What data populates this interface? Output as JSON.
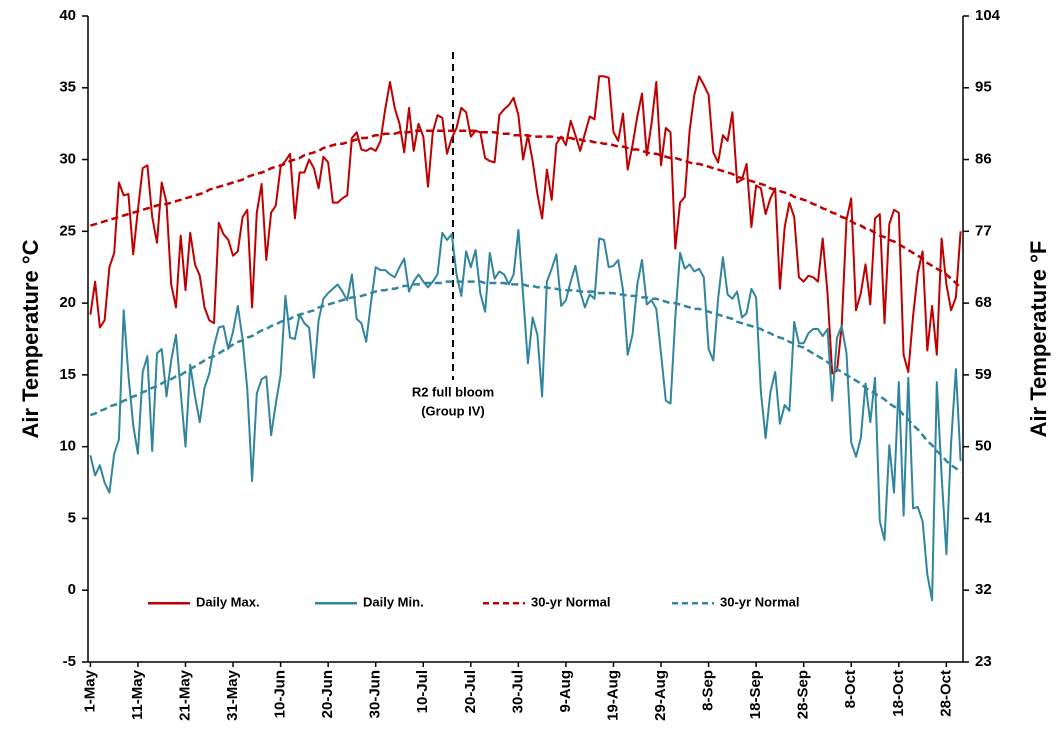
{
  "chart_data": {
    "type": "line",
    "ylabel": "Air Temperature °C",
    "y2label": "Air Temperature °F",
    "annotation": [
      "R2 full bloom",
      "(Group IV)"
    ],
    "categories": [
      "1-May",
      null,
      null,
      null,
      null,
      null,
      null,
      null,
      null,
      null,
      "11-May",
      null,
      null,
      null,
      null,
      null,
      null,
      null,
      null,
      null,
      "21-May",
      null,
      null,
      null,
      null,
      null,
      null,
      null,
      null,
      null,
      "31-May",
      null,
      null,
      null,
      null,
      null,
      null,
      null,
      null,
      null,
      "10-Jun",
      null,
      null,
      null,
      null,
      null,
      null,
      null,
      null,
      null,
      "20-Jun",
      null,
      null,
      null,
      null,
      null,
      null,
      null,
      null,
      null,
      "30-Jun",
      null,
      null,
      null,
      null,
      null,
      null,
      null,
      null,
      null,
      "10-Jul",
      null,
      null,
      null,
      null,
      null,
      null,
      null,
      null,
      null,
      "20-Jul",
      null,
      null,
      null,
      null,
      null,
      null,
      null,
      null,
      null,
      "30-Jul",
      null,
      null,
      null,
      null,
      null,
      null,
      null,
      null,
      null,
      "9-Aug",
      null,
      null,
      null,
      null,
      null,
      null,
      null,
      null,
      null,
      "19-Aug",
      null,
      null,
      null,
      null,
      null,
      null,
      null,
      null,
      null,
      "29-Aug",
      null,
      null,
      null,
      null,
      null,
      null,
      null,
      null,
      null,
      "8-Sep",
      null,
      null,
      null,
      null,
      null,
      null,
      null,
      null,
      null,
      "18-Sep",
      null,
      null,
      null,
      null,
      null,
      null,
      null,
      null,
      null,
      "28-Sep",
      null,
      null,
      null,
      null,
      null,
      null,
      null,
      null,
      null,
      "8-Oct",
      null,
      null,
      null,
      null,
      null,
      null,
      null,
      null,
      null,
      "18-Oct",
      null,
      null,
      null,
      null,
      null,
      null,
      null,
      null,
      null,
      "28-Oct",
      null,
      null,
      null
    ],
    "ylim": [
      -5,
      40
    ],
    "yticks": [
      -5,
      0,
      5,
      10,
      15,
      20,
      25,
      30,
      35,
      40
    ],
    "y2lim": [
      23,
      104
    ],
    "y2ticks": [
      23,
      32,
      41,
      50,
      59,
      68,
      77,
      86,
      95,
      104
    ],
    "legend": "lower center",
    "series": [
      {
        "name": "Daily Max.",
        "color": "#c00000",
        "dashed": false,
        "values": [
          19.2,
          21.5,
          18.3,
          18.8,
          22.5,
          23.5,
          28.4,
          27.5,
          27.6,
          23.4,
          26.5,
          29.4,
          29.6,
          26.0,
          24.2,
          28.4,
          27.0,
          21.3,
          19.7,
          24.7,
          20.9,
          24.9,
          22.7,
          21.9,
          19.7,
          18.8,
          18.6,
          25.6,
          24.8,
          24.4,
          23.3,
          23.6,
          26.0,
          26.5,
          19.7,
          26.3,
          28.3,
          23.0,
          26.3,
          26.8,
          29.5,
          29.9,
          30.4,
          25.9,
          29.1,
          29.1,
          30.0,
          29.4,
          28.0,
          30.2,
          29.8,
          27.0,
          27.0,
          27.3,
          27.5,
          31.5,
          31.9,
          30.7,
          30.6,
          30.8,
          30.6,
          31.3,
          33.5,
          35.4,
          33.6,
          32.5,
          30.5,
          33.6,
          30.6,
          32.5,
          31.6,
          28.1,
          31.9,
          33.1,
          32.9,
          30.4,
          31.5,
          32.2,
          33.6,
          33.3,
          31.6,
          32.0,
          31.9,
          30.1,
          29.9,
          29.8,
          33.1,
          33.5,
          33.8,
          34.3,
          33.1,
          30.0,
          31.7,
          29.9,
          27.6,
          25.9,
          29.3,
          27.2,
          31.1,
          31.6,
          31.0,
          32.7,
          31.7,
          30.6,
          31.8,
          33.0,
          32.8,
          35.8,
          35.8,
          35.7,
          31.9,
          31.3,
          33.2,
          29.3,
          31.0,
          33.0,
          34.6,
          30.3,
          32.5,
          35.4,
          29.6,
          32.2,
          31.9,
          23.8,
          27.0,
          27.4,
          32.0,
          34.5,
          35.8,
          35.2,
          34.5,
          30.5,
          29.8,
          31.7,
          31.3,
          33.3,
          28.4,
          28.6,
          29.7,
          25.3,
          28.2,
          28.0,
          26.2,
          27.3,
          28.0,
          21.0,
          25.3,
          27.0,
          26.0,
          21.8,
          21.5,
          21.9,
          21.8,
          21.5,
          24.5,
          20.7,
          15.1,
          15.3,
          18.4,
          25.8,
          27.3,
          19.5,
          20.7,
          22.7,
          19.9,
          25.9,
          26.2,
          18.6,
          25.5,
          26.5,
          26.3,
          16.4,
          15.2,
          19.1,
          22.1,
          23.6,
          16.7,
          19.8,
          16.4,
          24.5,
          21.3,
          19.5,
          20.4,
          25.0
        ]
      },
      {
        "name": "Daily Min.",
        "color": "#31859c",
        "dashed": false,
        "values": [
          9.4,
          8.0,
          8.7,
          7.5,
          6.8,
          9.5,
          10.5,
          19.5,
          15.0,
          11.5,
          9.5,
          15.2,
          16.3,
          9.7,
          16.5,
          16.8,
          13.5,
          16.0,
          17.8,
          13.8,
          10.0,
          15.7,
          13.5,
          11.7,
          14.1,
          15.1,
          17.0,
          18.3,
          18.4,
          16.8,
          18.0,
          19.8,
          17.5,
          14.0,
          7.6,
          13.7,
          14.7,
          14.9,
          10.8,
          13.0,
          15.0,
          20.5,
          17.6,
          17.5,
          19.2,
          18.6,
          18.3,
          14.8,
          18.8,
          20.3,
          20.7,
          21.0,
          21.3,
          20.8,
          20.2,
          22.0,
          18.9,
          18.6,
          17.3,
          20.0,
          22.5,
          22.3,
          22.3,
          22.0,
          21.8,
          22.5,
          23.1,
          20.8,
          21.5,
          22.0,
          21.5,
          21.1,
          21.5,
          22.0,
          24.9,
          24.4,
          24.8,
          22.0,
          20.5,
          23.6,
          22.5,
          23.7,
          20.7,
          19.4,
          23.5,
          21.7,
          22.2,
          22.0,
          21.3,
          22.0,
          25.1,
          20.6,
          15.8,
          19.0,
          17.8,
          13.5,
          21.5,
          22.4,
          23.4,
          19.8,
          20.2,
          21.5,
          22.6,
          20.8,
          19.7,
          20.6,
          20.3,
          24.5,
          24.4,
          22.5,
          22.6,
          23.0,
          20.9,
          16.4,
          17.8,
          21.3,
          23.0,
          19.9,
          20.2,
          19.6,
          16.5,
          13.2,
          13.0,
          19.0,
          23.5,
          22.4,
          22.7,
          22.2,
          22.4,
          21.8,
          16.8,
          16.0,
          20.3,
          23.2,
          20.6,
          20.3,
          20.8,
          19.0,
          19.3,
          21.0,
          20.4,
          13.8,
          10.6,
          13.8,
          15.2,
          11.6,
          12.9,
          12.5,
          18.7,
          17.2,
          17.2,
          17.9,
          18.2,
          18.2,
          17.7,
          18.2,
          13.2,
          17.6,
          18.4,
          16.5,
          10.3,
          9.3,
          10.6,
          14.4,
          11.7,
          14.8,
          4.8,
          3.5,
          10.1,
          6.8,
          14.5,
          5.2,
          14.8,
          5.7,
          5.8,
          4.8,
          1.1,
          -0.7,
          14.5,
          8.0,
          2.5,
          10.3,
          15.4,
          9.0
        ]
      },
      {
        "name": "30-yr Normal",
        "color": "#c00000",
        "dashed": true,
        "values": [
          25.4,
          25.5,
          25.6,
          25.7,
          25.8,
          25.9,
          26.0,
          26.1,
          26.2,
          26.3,
          26.4,
          26.5,
          26.6,
          26.7,
          26.8,
          26.9,
          26.9,
          27.0,
          27.1,
          27.2,
          27.3,
          27.4,
          27.5,
          27.6,
          27.7,
          27.9,
          28.0,
          28.1,
          28.2,
          28.3,
          28.4,
          28.5,
          28.6,
          28.8,
          28.9,
          29.0,
          29.1,
          29.2,
          29.4,
          29.5,
          29.6,
          29.7,
          29.9,
          30.0,
          30.1,
          30.3,
          30.4,
          30.5,
          30.6,
          30.8,
          30.9,
          31.0,
          31.1,
          31.1,
          31.2,
          31.3,
          31.4,
          31.5,
          31.5,
          31.6,
          31.7,
          31.7,
          31.8,
          31.8,
          31.8,
          31.9,
          31.9,
          31.9,
          32.0,
          32.0,
          32.0,
          32.0,
          32.0,
          32.0,
          32.0,
          32.0,
          32.0,
          32.0,
          32.0,
          32.0,
          32.0,
          32.0,
          31.9,
          31.9,
          31.9,
          31.9,
          31.8,
          31.8,
          31.8,
          31.7,
          31.7,
          31.7,
          31.7,
          31.6,
          31.6,
          31.6,
          31.6,
          31.6,
          31.5,
          31.5,
          31.5,
          31.5,
          31.4,
          31.4,
          31.3,
          31.3,
          31.2,
          31.2,
          31.1,
          31.1,
          31.0,
          30.9,
          30.9,
          30.8,
          30.7,
          30.7,
          30.6,
          30.5,
          30.4,
          30.4,
          30.3,
          30.2,
          30.1,
          30.1,
          30.0,
          29.9,
          29.8,
          29.7,
          29.7,
          29.6,
          29.5,
          29.4,
          29.3,
          29.2,
          29.1,
          29.0,
          28.8,
          28.7,
          28.6,
          28.5,
          28.4,
          28.3,
          28.2,
          28.0,
          27.9,
          27.8,
          27.7,
          27.6,
          27.4,
          27.3,
          27.2,
          27.1,
          26.9,
          26.8,
          26.6,
          26.5,
          26.3,
          26.2,
          26.0,
          25.9,
          25.7,
          25.5,
          25.4,
          25.2,
          25.1,
          24.9,
          24.7,
          24.6,
          24.4,
          24.3,
          24.1,
          23.9,
          23.7,
          23.5,
          23.3,
          23.1,
          22.8,
          22.6,
          22.4,
          22.2,
          22.0,
          21.7,
          21.4,
          21.1
        ]
      },
      {
        "name": "30-yr Normal",
        "color": "#31859c",
        "dashed": true,
        "values": [
          12.2,
          12.3,
          12.5,
          12.6,
          12.8,
          12.9,
          13.0,
          13.2,
          13.3,
          13.5,
          13.6,
          13.8,
          13.9,
          14.1,
          14.2,
          14.4,
          14.6,
          14.7,
          14.9,
          15.0,
          15.2,
          15.4,
          15.6,
          15.8,
          16.0,
          16.2,
          16.3,
          16.5,
          16.7,
          16.9,
          17.1,
          17.3,
          17.4,
          17.6,
          17.7,
          17.9,
          18.1,
          18.2,
          18.4,
          18.5,
          18.7,
          18.8,
          18.9,
          19.1,
          19.2,
          19.3,
          19.4,
          19.5,
          19.7,
          19.8,
          19.9,
          20.0,
          20.1,
          20.2,
          20.3,
          20.4,
          20.4,
          20.5,
          20.6,
          20.7,
          20.8,
          20.9,
          20.9,
          21.0,
          21.0,
          21.1,
          21.2,
          21.2,
          21.3,
          21.3,
          21.4,
          21.4,
          21.4,
          21.4,
          21.4,
          21.5,
          21.5,
          21.5,
          21.5,
          21.5,
          21.5,
          21.5,
          21.5,
          21.4,
          21.4,
          21.4,
          21.4,
          21.4,
          21.3,
          21.3,
          21.3,
          21.3,
          21.2,
          21.2,
          21.1,
          21.1,
          21.1,
          21.0,
          21.0,
          20.9,
          20.9,
          20.9,
          20.9,
          20.8,
          20.8,
          20.8,
          20.8,
          20.7,
          20.7,
          20.7,
          20.7,
          20.6,
          20.6,
          20.5,
          20.5,
          20.5,
          20.4,
          20.4,
          20.3,
          20.3,
          20.2,
          20.1,
          20.0,
          20.0,
          19.9,
          19.8,
          19.7,
          19.6,
          19.6,
          19.5,
          19.4,
          19.3,
          19.2,
          19.1,
          19.0,
          18.9,
          18.7,
          18.6,
          18.5,
          18.4,
          18.3,
          18.2,
          18.0,
          17.9,
          17.7,
          17.6,
          17.5,
          17.3,
          17.2,
          17.0,
          16.9,
          16.7,
          16.5,
          16.3,
          16.1,
          15.9,
          15.6,
          15.4,
          15.2,
          15.0,
          14.8,
          14.6,
          14.4,
          14.1,
          13.9,
          13.7,
          13.5,
          13.3,
          13.0,
          12.8,
          12.6,
          12.2,
          11.9,
          11.5,
          11.2,
          10.8,
          10.4,
          10.1,
          9.7,
          9.4,
          9.0,
          8.7,
          8.5,
          8.2
        ]
      }
    ]
  }
}
